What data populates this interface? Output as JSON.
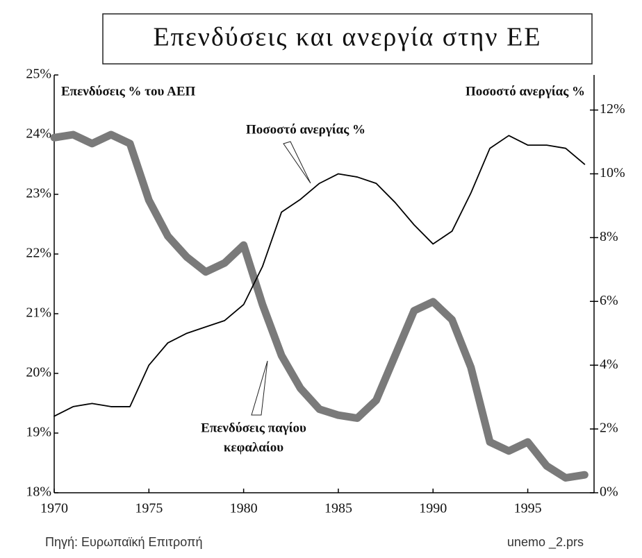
{
  "chart_data": {
    "type": "line",
    "title": "Επενδύσεις και ανεργία στην ΕΕ",
    "x": [
      1970,
      1971,
      1972,
      1973,
      1974,
      1975,
      1976,
      1977,
      1978,
      1979,
      1980,
      1981,
      1982,
      1983,
      1984,
      1985,
      1986,
      1987,
      1988,
      1989,
      1990,
      1991,
      1992,
      1993,
      1994,
      1995,
      1996,
      1997,
      1998
    ],
    "series": [
      {
        "name": "Επενδύσεις % του ΑΕΠ",
        "color": "#7a7a7a",
        "axis": "y",
        "values": [
          23.95,
          24.0,
          23.85,
          24.0,
          23.85,
          22.9,
          22.3,
          21.95,
          21.7,
          21.85,
          22.15,
          21.15,
          20.3,
          19.75,
          19.4,
          19.3,
          19.25,
          19.55,
          20.3,
          21.05,
          21.2,
          20.9,
          20.1,
          18.85,
          18.7,
          18.85,
          18.45,
          18.25,
          18.3
        ]
      },
      {
        "name": "Ποσοστό ανεργίας %",
        "color": "#000000",
        "axis": "y2",
        "values": [
          2.4,
          2.7,
          2.8,
          2.7,
          2.7,
          4.0,
          4.7,
          5.0,
          5.2,
          5.4,
          5.9,
          7.1,
          8.8,
          9.2,
          9.7,
          10.0,
          9.9,
          9.7,
          9.1,
          8.4,
          7.8,
          8.2,
          9.4,
          10.8,
          11.2,
          10.9,
          10.9,
          10.8,
          10.3
        ]
      }
    ],
    "annotations": [
      {
        "lines": [
          "Ποσοστό ανεργίας %"
        ]
      },
      {
        "lines": [
          "Επενδύσεις παγίου",
          "κεφαλαίου"
        ]
      }
    ],
    "xlim": [
      1970,
      1998.5
    ],
    "xticks": [
      1970,
      1975,
      1980,
      1985,
      1990,
      1995
    ],
    "ylim": [
      18,
      25
    ],
    "yticks": [
      {
        "value": 18,
        "label": "18%"
      },
      {
        "value": 19,
        "label": "19%"
      },
      {
        "value": 20,
        "label": "20%"
      },
      {
        "value": 21,
        "label": "21%"
      },
      {
        "value": 22,
        "label": "22%"
      },
      {
        "value": 23,
        "label": "23%"
      },
      {
        "value": 24,
        "label": "24%"
      },
      {
        "value": 25,
        "label": "25%"
      }
    ],
    "y2lim": [
      0,
      13.1
    ],
    "y2ticks": [
      {
        "value": 0,
        "label": "0%"
      },
      {
        "value": 2,
        "label": "2%"
      },
      {
        "value": 4,
        "label": "4%"
      },
      {
        "value": 6,
        "label": "6%"
      },
      {
        "value": 8,
        "label": "8%"
      },
      {
        "value": 10,
        "label": "10%"
      },
      {
        "value": 12,
        "label": "12%"
      }
    ],
    "source": "Πηγή: Ευρωπαϊκή Επιτροπή",
    "file": "unemo _2.prs"
  }
}
